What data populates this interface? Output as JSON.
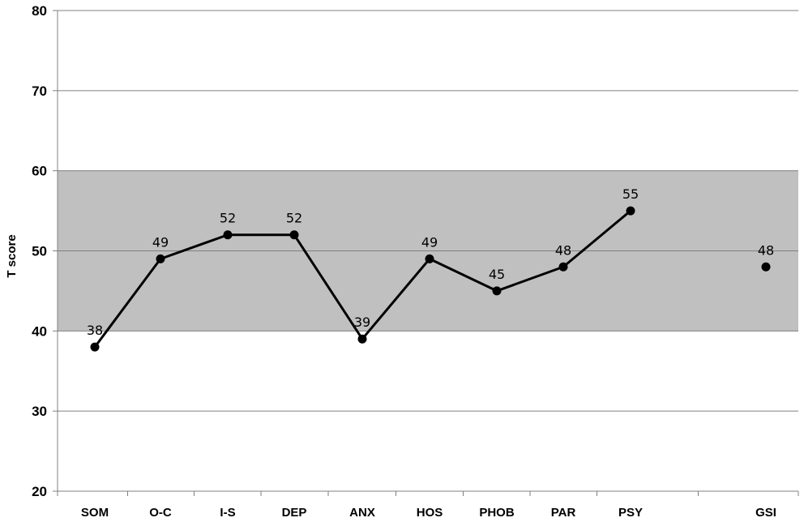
{
  "chart_data": {
    "type": "line",
    "ylabel": "T score",
    "ylim": [
      20,
      80
    ],
    "yticks": [
      20,
      30,
      40,
      50,
      60,
      70,
      80
    ],
    "grid": true,
    "shaded_band": {
      "from": 40,
      "to": 60,
      "color": "#c0c0c0"
    },
    "categories": [
      "SOM",
      "O-C",
      "I-S",
      "DEP",
      "ANX",
      "HOS",
      "PHOB",
      "PAR",
      "PSY",
      "GSI"
    ],
    "values": [
      38,
      49,
      52,
      52,
      39,
      49,
      45,
      48,
      55,
      48
    ],
    "data_labels": [
      "38",
      "49",
      "52",
      "52",
      "39",
      "49",
      "45",
      "48",
      "55",
      "48"
    ],
    "connected_through": "PSY",
    "line_color": "#000000"
  }
}
